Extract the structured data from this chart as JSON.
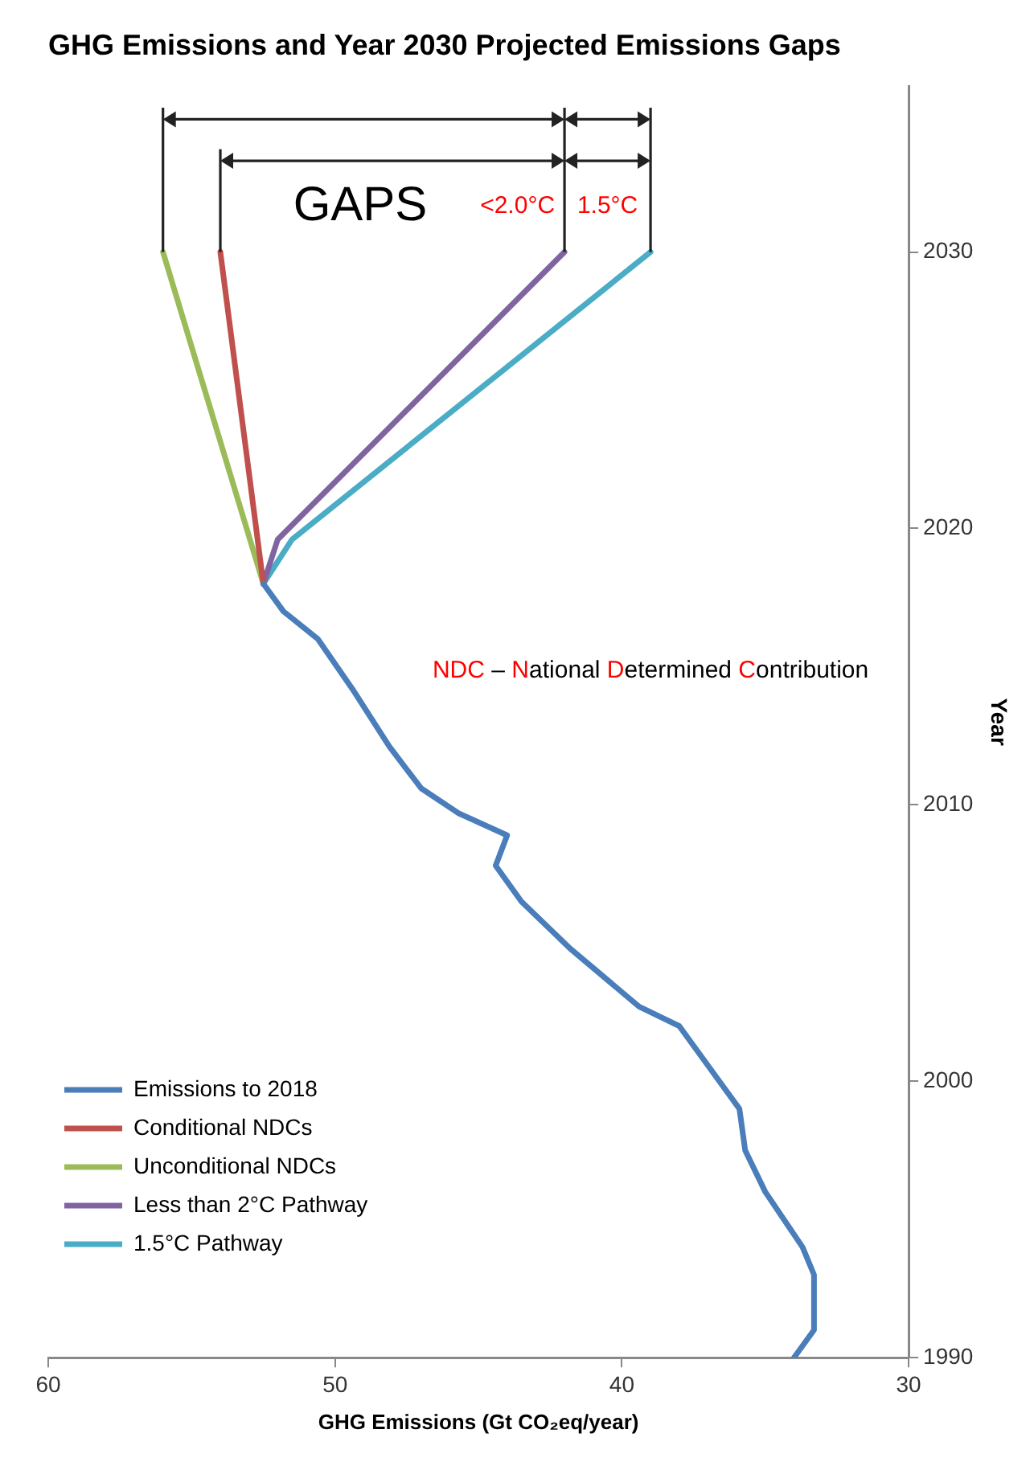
{
  "chart_data": {
    "type": "line",
    "title": "GHG Emissions and Year 2030 Projected Emissions Gaps",
    "xlabel": "GHG Emissions (Gt CO₂eq/year)",
    "ylabel": "Year",
    "xlim": [
      60,
      30
    ],
    "xticks": [
      30,
      40,
      50,
      60
    ],
    "ylim": [
      1990,
      2036
    ],
    "yticks": [
      1990,
      2000,
      2010,
      2020,
      2030
    ],
    "grid": false,
    "legend": "bottom left",
    "marker": "none",
    "line_style": "solid",
    "series": [
      {
        "name": "Emissions to 2018",
        "color": "#4a7ebb",
        "x": [
          34.0,
          33.3,
          33.3,
          33.7,
          35.0,
          35.7,
          35.9,
          36.6,
          38.0,
          39.4,
          41.8,
          43.5,
          44.4,
          44.0,
          45.7,
          47.0,
          48.1,
          49.4,
          50.6,
          51.8,
          52.5
        ],
        "values": [
          1990,
          1991,
          1993,
          1994,
          1996,
          1997.5,
          1999,
          2000,
          2002,
          2002.7,
          2004.8,
          2006.5,
          2007.8,
          2008.9,
          2009.7,
          2010.6,
          2012.1,
          2014.2,
          2016,
          2017,
          2018
        ]
      },
      {
        "name": "Conditional NDCs",
        "color": "#c0504d",
        "x": [
          52.5,
          54
        ],
        "values": [
          2018,
          2030
        ]
      },
      {
        "name": "Unconditional NDCs",
        "color": "#9bbb59",
        "x": [
          52.5,
          56
        ],
        "values": [
          2018,
          2030
        ]
      },
      {
        "name": "Less than 2°C Pathway",
        "color": "#8064a2",
        "x": [
          52.5,
          52.0,
          42
        ],
        "values": [
          2018,
          2019.6,
          2030
        ]
      },
      {
        "name": "1.5°C Pathway",
        "color": "#4bacc6",
        "x": [
          52.5,
          51.5,
          39
        ],
        "values": [
          2018,
          2019.6,
          2030
        ]
      }
    ],
    "annotations": [
      "GAPS",
      "<2.0°C",
      "1.5°C",
      "NDC – National Determined Contribution"
    ]
  }
}
